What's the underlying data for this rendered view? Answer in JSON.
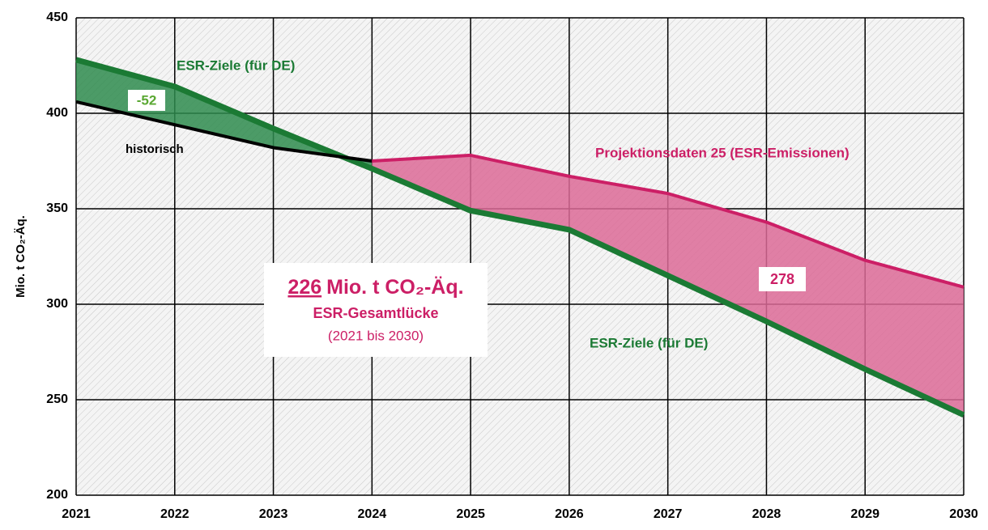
{
  "chart_data": {
    "type": "line",
    "x": [
      2021,
      2022,
      2023,
      2024,
      2025,
      2026,
      2027,
      2028,
      2029,
      2030
    ],
    "xlim": [
      2021,
      2030
    ],
    "xticks": [
      2021,
      2022,
      2023,
      2024,
      2025,
      2026,
      2027,
      2028,
      2029,
      2030
    ],
    "ylim": [
      200,
      450
    ],
    "yticks": [
      200,
      250,
      300,
      350,
      400,
      450
    ],
    "ylabel": "Mio. t CO₂-Äq.",
    "grid": true,
    "series": [
      {
        "name": "ESR-Ziele (für DE)",
        "color": "#1b7a34",
        "values": [
          428,
          414,
          392,
          371,
          349,
          339,
          315,
          291,
          266,
          242
        ]
      },
      {
        "name": "historisch",
        "color": "#000000",
        "values": [
          406,
          394,
          382,
          375,
          null,
          null,
          null,
          null,
          null,
          null
        ]
      },
      {
        "name": "Projektionsdaten 25 (ESR-Emissionen)",
        "color": "#cc1f66",
        "values": [
          null,
          null,
          null,
          375,
          378,
          367,
          358,
          343,
          323,
          309
        ]
      }
    ],
    "annotations": [
      {
        "text": "-52"
      },
      {
        "text": "278"
      },
      {
        "text": "ESR-Ziele (für DE)"
      },
      {
        "text": "226"
      },
      {
        "text": "Mio. t CO₂-Äq."
      },
      {
        "text": "ESR-Gesamtlücke"
      },
      {
        "text": "(2021 bis 2030)"
      }
    ]
  }
}
